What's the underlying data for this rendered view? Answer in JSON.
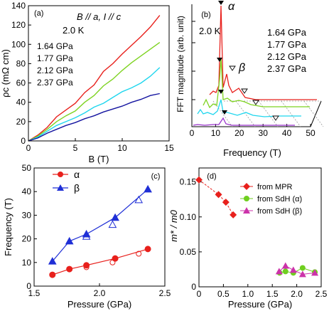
{
  "panels": {
    "a": {
      "label": "(a)",
      "annotation_line1": "B // a, I // c",
      "annotation_line2": "2.0 K",
      "ylabel": "ρc (mΩ cm)",
      "xlabel": "B (T)",
      "xticks": [
        "0",
        "5",
        "10",
        "15"
      ],
      "yticks": [
        "0",
        "20",
        "40",
        "60",
        "80",
        "100",
        "120",
        "140"
      ]
    },
    "b": {
      "label": "(b)",
      "temp": "2.0 K",
      "ylabel": "FFT magnitude (arb. unit)",
      "xlabel": "Frequency (T)",
      "alpha": "α",
      "beta": "β",
      "xticks": [
        "0",
        "10",
        "20",
        "30",
        "40",
        "50"
      ]
    },
    "c": {
      "label": "(c)",
      "ylabel": "Frequency (T)",
      "xlabel": "Pressure (GPa)",
      "legend_alpha": "α",
      "legend_beta": "β",
      "xticks": [
        "1.5",
        "2.0",
        "2.5"
      ],
      "yticks": [
        "0",
        "10",
        "20",
        "30",
        "40",
        "50"
      ]
    },
    "d": {
      "label": "(d)",
      "ylabel": "m* / m0",
      "xlabel": "Pressure (GPa)",
      "legend": [
        "from MPR",
        "from SdH (α)",
        "from SdH (β)"
      ],
      "xticks": [
        "0",
        "0.5",
        "1.0",
        "1.5",
        "2.0",
        "2.5"
      ],
      "yticks": [
        "0",
        "0.05",
        "0.10",
        "0.15"
      ]
    }
  },
  "chart_data": [
    {
      "type": "line",
      "title": "(a)",
      "xlabel": "B (T)",
      "ylabel": "ρc (mΩ cm)",
      "xlim": [
        0,
        15
      ],
      "ylim": [
        0,
        140
      ],
      "series": [
        {
          "name": "1.64 GPa",
          "color": "#e8201c",
          "x": [
            0,
            1,
            2,
            3,
            4,
            5,
            6,
            7,
            8,
            9,
            10,
            11,
            12,
            13,
            14
          ],
          "y": [
            0,
            6,
            14,
            25,
            32,
            39,
            50,
            58,
            72,
            80,
            90,
            99,
            108,
            118,
            130
          ]
        },
        {
          "name": "1.77 GPa",
          "color": "#7ed321",
          "x": [
            0,
            1,
            2,
            3,
            4,
            5,
            6,
            7,
            8,
            9,
            10,
            11,
            12,
            13,
            14
          ],
          "y": [
            0,
            5,
            12,
            20,
            26,
            31,
            40,
            47,
            57,
            64,
            73,
            81,
            88,
            95,
            102
          ]
        },
        {
          "name": "2.12 GPa",
          "color": "#1fd6ee",
          "x": [
            0,
            1,
            2,
            3,
            4,
            5,
            6,
            7,
            8,
            9,
            10,
            11,
            12,
            13,
            14
          ],
          "y": [
            0,
            4,
            10,
            16,
            20,
            24,
            29,
            35,
            39,
            45,
            51,
            55,
            60,
            67,
            76
          ]
        },
        {
          "name": "2.37 GPa",
          "color": "#1414a0",
          "x": [
            0,
            1,
            2,
            3,
            4,
            5,
            6,
            7,
            8,
            9,
            10,
            11,
            12,
            13,
            14
          ],
          "y": [
            0,
            3,
            8,
            12,
            16,
            19,
            23,
            26,
            30,
            33,
            36,
            40,
            43,
            47,
            49
          ]
        }
      ]
    },
    {
      "type": "line",
      "title": "(b)",
      "xlabel": "Frequency (T)",
      "ylabel": "FFT magnitude (arb. unit)",
      "xlim": [
        0,
        50
      ],
      "series": [
        {
          "name": "1.64 GPa",
          "color": "#e8201c"
        },
        {
          "name": "1.77 GPa",
          "color": "#7ed321"
        },
        {
          "name": "2.12 GPa",
          "color": "#1fd6ee"
        },
        {
          "name": "2.37 GPa",
          "color": "#9933cc"
        }
      ],
      "peaks_alpha": [
        12.5,
        12.5,
        12.5,
        15.5
      ],
      "peaks_beta": [
        17,
        26,
        32,
        40
      ]
    },
    {
      "type": "scatter",
      "title": "(c)",
      "xlabel": "Pressure (GPa)",
      "ylabel": "Frequency (T)",
      "xlim": [
        1.5,
        2.5
      ],
      "ylim": [
        0,
        50
      ],
      "series": [
        {
          "name": "α",
          "color": "#e8201c",
          "x": [
            1.64,
            1.77,
            1.9,
            2.12,
            2.37
          ],
          "y": [
            4.8,
            7.2,
            8.8,
            11.7,
            15.7
          ]
        },
        {
          "name": "α (open)",
          "color": "#e8201c",
          "x": [
            1.9,
            2.1,
            2.3
          ],
          "y": [
            8.0,
            10.0,
            13.7
          ]
        },
        {
          "name": "β",
          "color": "#1f2fd6",
          "x": [
            1.64,
            1.77,
            1.9,
            2.12,
            2.37
          ],
          "y": [
            10.5,
            19.0,
            22.0,
            29.0,
            41.0
          ]
        },
        {
          "name": "β (open)",
          "color": "#1f2fd6",
          "x": [
            1.9,
            2.1,
            2.3
          ],
          "y": [
            21.0,
            26.0,
            36.5
          ]
        }
      ]
    },
    {
      "type": "scatter",
      "title": "(d)",
      "xlabel": "Pressure (GPa)",
      "ylabel": "m*/m0",
      "xlim": [
        0,
        2.5
      ],
      "ylim": [
        0,
        0.17
      ],
      "series": [
        {
          "name": "from MPR",
          "color": "#e8201c",
          "x": [
            0,
            0.4,
            0.55,
            0.7
          ],
          "y": [
            0.153,
            0.132,
            0.121,
            0.103
          ]
        },
        {
          "name": "from SdH (α)",
          "color": "#6fcf1f",
          "x": [
            1.65,
            1.77,
            1.93,
            2.12,
            2.37
          ],
          "y": [
            0.02,
            0.022,
            0.02,
            0.027,
            0.021
          ]
        },
        {
          "name": "from SdH (β)",
          "color": "#cc33aa",
          "x": [
            1.64,
            1.77,
            1.93,
            2.12,
            2.37
          ],
          "y": [
            0.022,
            0.03,
            0.024,
            0.018,
            0.02
          ]
        }
      ]
    }
  ]
}
